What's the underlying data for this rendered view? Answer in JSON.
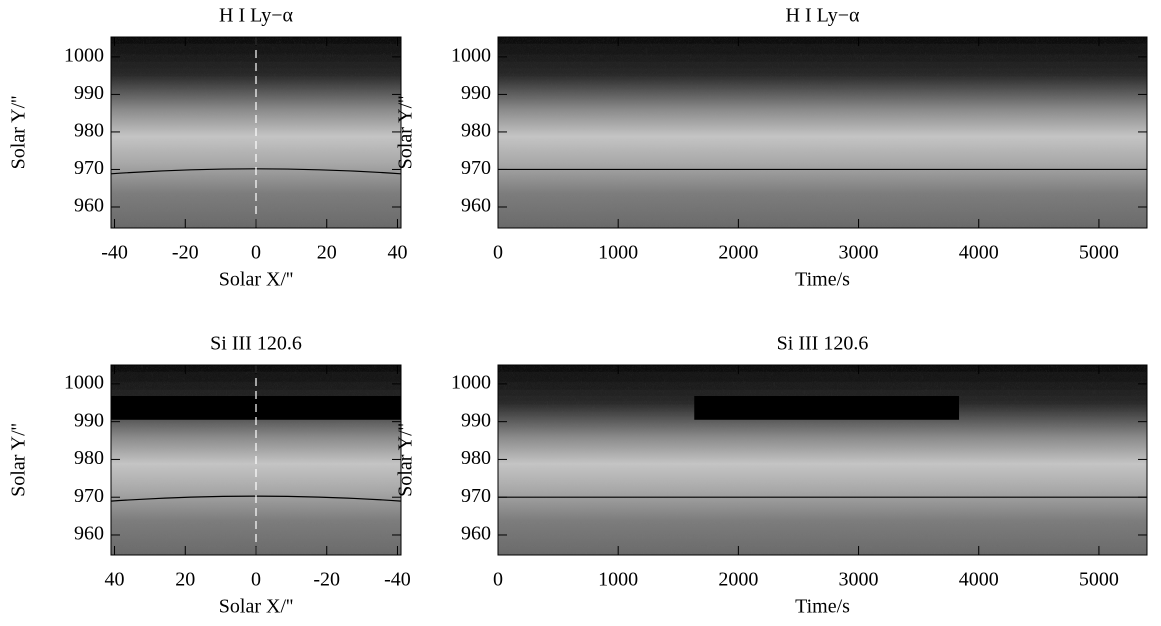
{
  "chart_data": [
    {
      "type": "image",
      "title": "H I Ly−α",
      "xlabel": "Solar X/''",
      "ylabel": "Solar Y/''",
      "xlim": [
        -41,
        41
      ],
      "ylim": [
        954.4,
        1005.3
      ],
      "xticks": [
        -40,
        -20,
        0,
        20,
        40
      ],
      "yticks": [
        960,
        970,
        980,
        990,
        1000
      ],
      "vline": 0,
      "limb": true
    },
    {
      "type": "image",
      "title": "H I Ly−α",
      "xlabel": "Time/s",
      "ylabel": "Solar Y/''",
      "xlim": [
        0,
        5400
      ],
      "ylim": [
        954.4,
        1005.3
      ],
      "xticks": [
        0,
        1000,
        2000,
        3000,
        4000,
        5000
      ],
      "yticks": [
        960,
        970,
        980,
        990,
        1000
      ],
      "hline": 970
    },
    {
      "type": "image",
      "title": "Si III 120.6",
      "xlabel": "Solar X/''",
      "ylabel": "Solar Y/''",
      "xlim": [
        41,
        -41
      ],
      "ylim": [
        954.7,
        1005
      ],
      "xticks": [
        40,
        20,
        0,
        -20,
        -40
      ],
      "yticks": [
        960,
        970,
        980,
        990,
        1000
      ],
      "vline": 0,
      "limb": true,
      "mask": {
        "x": [
          41,
          -41
        ],
        "y": [
          990.5,
          996.8
        ]
      }
    },
    {
      "type": "image",
      "title": "Si III 120.6",
      "xlabel": "Time/s",
      "ylabel": "Solar Y/''",
      "xlim": [
        0,
        5400
      ],
      "ylim": [
        954.7,
        1005
      ],
      "xticks": [
        0,
        1000,
        2000,
        3000,
        4000,
        5000
      ],
      "yticks": [
        960,
        970,
        980,
        990,
        1000
      ],
      "hline": 970,
      "mask": {
        "x": [
          1633,
          3836
        ],
        "y": [
          990.5,
          996.8
        ]
      }
    }
  ]
}
